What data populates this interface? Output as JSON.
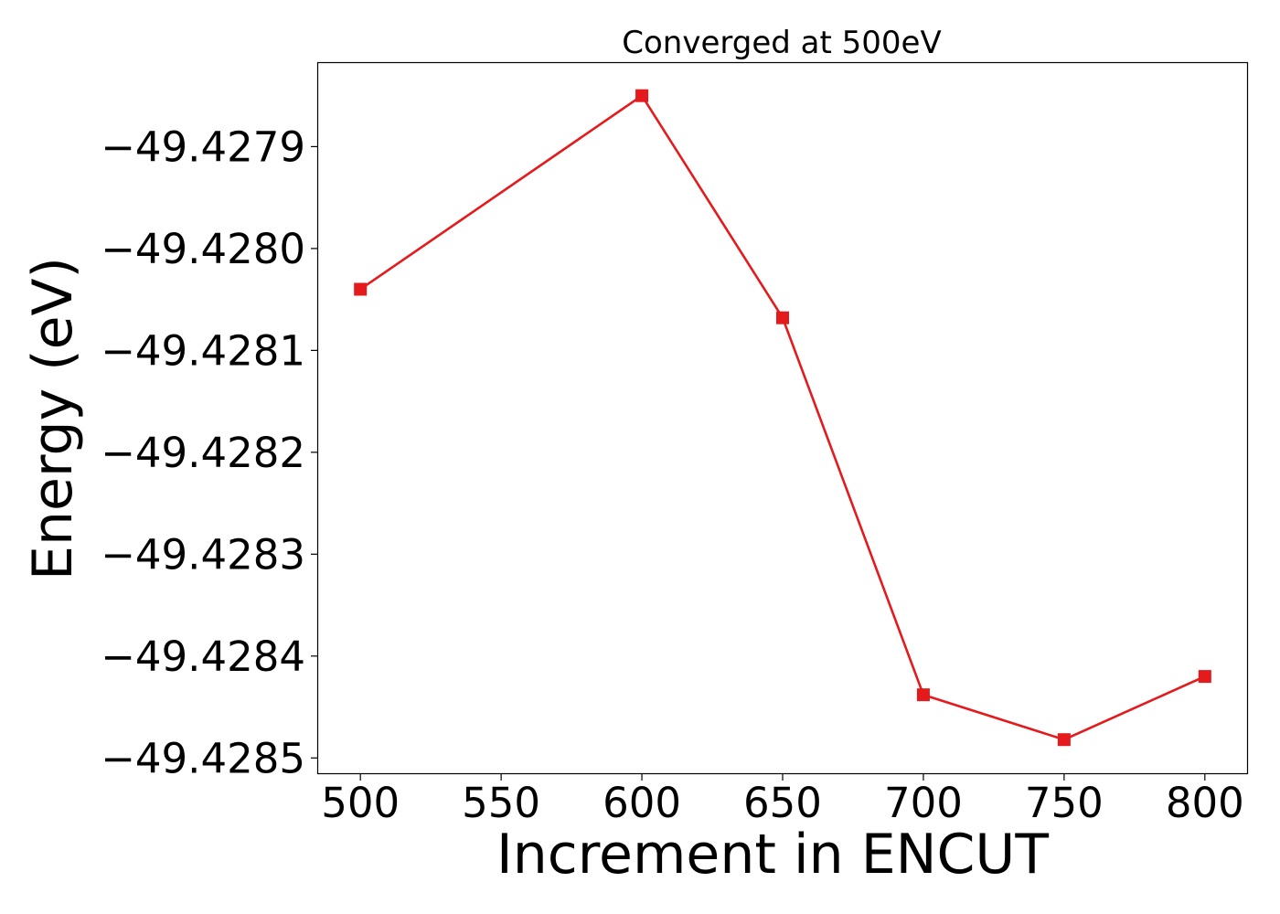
{
  "chart_data": {
    "type": "line",
    "title": "Converged at 500eV",
    "xlabel": "Increment in ENCUT",
    "ylabel": "Energy (eV)",
    "x": [
      500,
      600,
      650,
      700,
      750,
      800
    ],
    "series": [
      {
        "values": [
          -49.42804,
          -49.42785,
          -49.428068,
          -49.428438,
          -49.428482,
          -49.42842
        ],
        "color": "#e41a1c",
        "marker": "square"
      }
    ],
    "xticks": [
      500,
      550,
      600,
      650,
      700,
      750,
      800
    ],
    "xtick_labels": [
      "500",
      "550",
      "600",
      "650",
      "700",
      "750",
      "800"
    ],
    "yticks": [
      -49.4279,
      -49.428,
      -49.4281,
      -49.4282,
      -49.4283,
      -49.4284,
      -49.4285
    ],
    "ytick_labels": [
      "−49.4279",
      "−49.4280",
      "−49.4281",
      "−49.4282",
      "−49.4283",
      "−49.4284",
      "−49.4285"
    ],
    "xlim": [
      485,
      815
    ],
    "ylim": [
      -49.428515,
      -49.427818
    ],
    "grid": false,
    "legend": false
  }
}
